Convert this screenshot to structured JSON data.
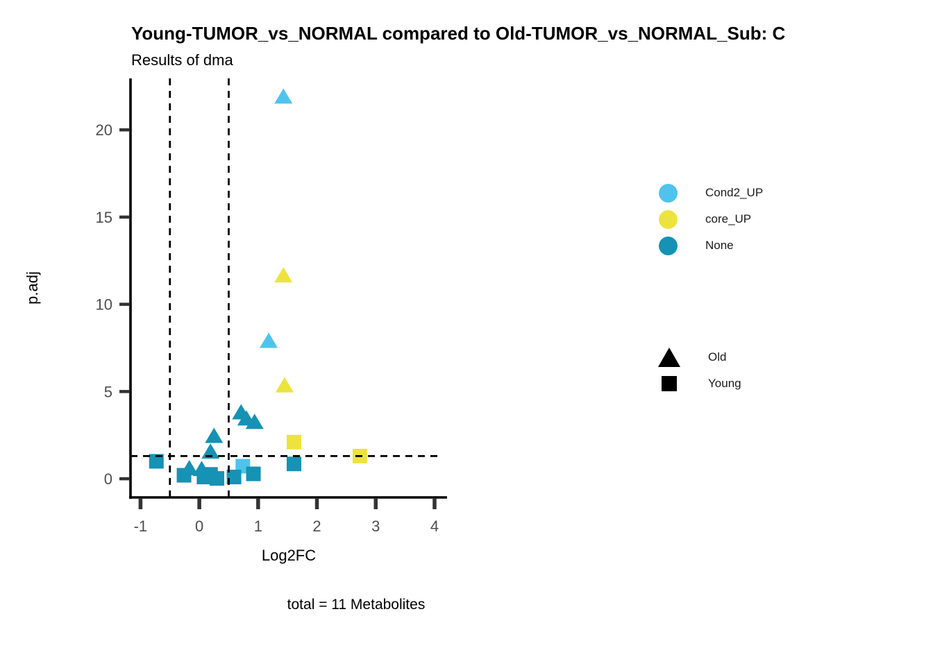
{
  "header": {
    "title": "Young-TUMOR_vs_NORMAL compared to Old-TUMOR_vs_NORMAL_Sub: C",
    "subtitle": "Results of dma"
  },
  "caption": "total = 11 Metabolites",
  "colors": {
    "Cond2_UP": "#4EC4ED",
    "core_UP": "#EDE33E",
    "None": "#1592B4",
    "axis_line": "#000000",
    "tick_mark": "#333333",
    "tick_label": "#4d4d4d",
    "threshold_line": "#000000"
  },
  "legend": {
    "color": {
      "items": [
        {
          "label": "Cond2_UP",
          "color": "#4EC4ED"
        },
        {
          "label": "core_UP",
          "color": "#EDE33E"
        },
        {
          "label": "None",
          "color": "#1592B4"
        }
      ]
    },
    "shape": {
      "items": [
        {
          "label": "Old",
          "shape": "triangle"
        },
        {
          "label": "Young",
          "shape": "square"
        }
      ]
    }
  },
  "chart_data": {
    "type": "scatter",
    "title": "Young-TUMOR_vs_NORMAL compared to Old-TUMOR_vs_NORMAL_Sub: C",
    "subtitle": "Results of dma",
    "xlabel": "Log2FC",
    "ylabel": "p.adj",
    "xlim": [
      -1.17,
      4.26
    ],
    "ylim": [
      -1.07,
      22.95
    ],
    "xticks": [
      -1,
      0,
      1,
      2,
      3,
      4
    ],
    "yticks": [
      0,
      5,
      10,
      15,
      20
    ],
    "grid": false,
    "legend_position": "right",
    "thresholds": {
      "vlines_x": [
        -0.5,
        0.5
      ],
      "hline_y": 1.3,
      "line_style": "dashed"
    },
    "series": [
      {
        "name": "Old",
        "marker": "triangle",
        "points": [
          {
            "x": 1.43,
            "y": 21.9,
            "group": "Cond2_UP"
          },
          {
            "x": 1.43,
            "y": 11.65,
            "group": "core_UP"
          },
          {
            "x": 1.18,
            "y": 7.9,
            "group": "Cond2_UP"
          },
          {
            "x": 1.45,
            "y": 5.35,
            "group": "core_UP"
          },
          {
            "x": 0.71,
            "y": 3.8,
            "group": "None"
          },
          {
            "x": 0.8,
            "y": 3.45,
            "group": "None"
          },
          {
            "x": 0.94,
            "y": 3.25,
            "group": "None"
          },
          {
            "x": 0.25,
            "y": 2.45,
            "group": "None"
          },
          {
            "x": 0.19,
            "y": 1.55,
            "group": "None"
          },
          {
            "x": -0.17,
            "y": 0.6,
            "group": "None"
          },
          {
            "x": 0.04,
            "y": 0.55,
            "group": "None"
          }
        ]
      },
      {
        "name": "Young",
        "marker": "square",
        "points": [
          {
            "x": 1.61,
            "y": 2.1,
            "group": "core_UP"
          },
          {
            "x": 2.73,
            "y": 1.3,
            "group": "core_UP"
          },
          {
            "x": -0.73,
            "y": 1.0,
            "group": "None"
          },
          {
            "x": 0.74,
            "y": 0.72,
            "group": "Cond2_UP"
          },
          {
            "x": -0.26,
            "y": 0.2,
            "group": "None"
          },
          {
            "x": 0.19,
            "y": 0.25,
            "group": "None"
          },
          {
            "x": 0.08,
            "y": 0.1,
            "group": "None"
          },
          {
            "x": 0.3,
            "y": 0.02,
            "group": "None"
          },
          {
            "x": 0.59,
            "y": 0.1,
            "group": "None"
          },
          {
            "x": 0.92,
            "y": 0.28,
            "group": "None"
          },
          {
            "x": 1.61,
            "y": 0.85,
            "group": "None"
          }
        ]
      }
    ],
    "caption": "total = 11 Metabolites"
  }
}
